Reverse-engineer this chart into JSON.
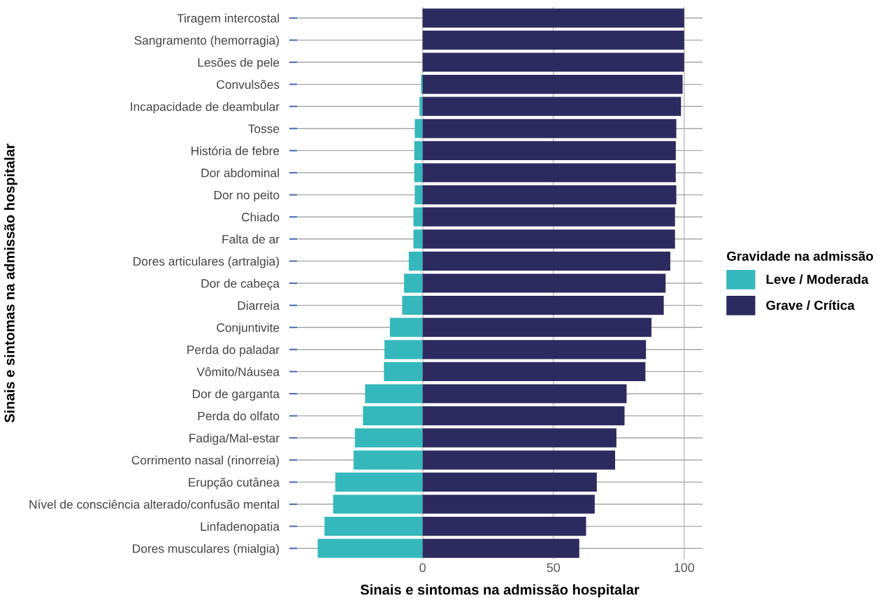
{
  "chart_data": {
    "type": "bar",
    "orientation": "horizontal",
    "stacked": true,
    "xlabel": "Sinais e sintomas na admissão hospitalar",
    "ylabel": "Sinais e sintomas na admissão hospitalar",
    "legend_title": "Gravidade na admissão",
    "categories": [
      "Tiragem intercostal",
      "Sangramento (hemorragia)",
      "Lesões de pele",
      "Convulsões",
      "Incapacidade de deambular",
      "Tosse",
      "História de febre",
      "Dor abdominal",
      "Dor no peito",
      "Chiado",
      "Falta de ar",
      "Dores articulares (artralgia)",
      "Dor de cabeça",
      "Diarreia",
      "Conjuntivite",
      "Perda do paladar",
      "Vômito/Náusea",
      "Dor de garganta",
      "Perda do olfato",
      "Fadiga/Mal-estar",
      "Corrimento nasal (rinorreia)",
      "Erupção cutânea",
      "Nível de consciência alterado/confusão mental",
      "Linfadenopatia",
      "Dores musculares (mialgia)"
    ],
    "series": [
      {
        "name": "Leve / Moderada",
        "color": "#34b8bb",
        "values": [
          0,
          0,
          0,
          -0.6,
          -1.2,
          -3.0,
          -3.2,
          -3.2,
          -3.0,
          -3.5,
          -3.5,
          -5.3,
          -7.1,
          -7.8,
          -12.5,
          -14.6,
          -14.8,
          -22.0,
          -22.8,
          -25.9,
          -26.4,
          -33.4,
          -34.2,
          -37.5,
          -40.1
        ]
      },
      {
        "name": "Grave / Crítica",
        "color": "#2c2a5e",
        "values": [
          100,
          100,
          100,
          99.4,
          98.8,
          97.0,
          96.8,
          96.8,
          97.0,
          96.5,
          96.5,
          94.7,
          92.9,
          92.2,
          87.5,
          85.4,
          85.2,
          78.0,
          77.2,
          74.1,
          73.6,
          66.6,
          65.8,
          62.5,
          59.9
        ]
      }
    ],
    "xlim": [
      -48,
      107
    ],
    "xticks": [
      0,
      50,
      100
    ],
    "grid": true,
    "legend": "right"
  }
}
